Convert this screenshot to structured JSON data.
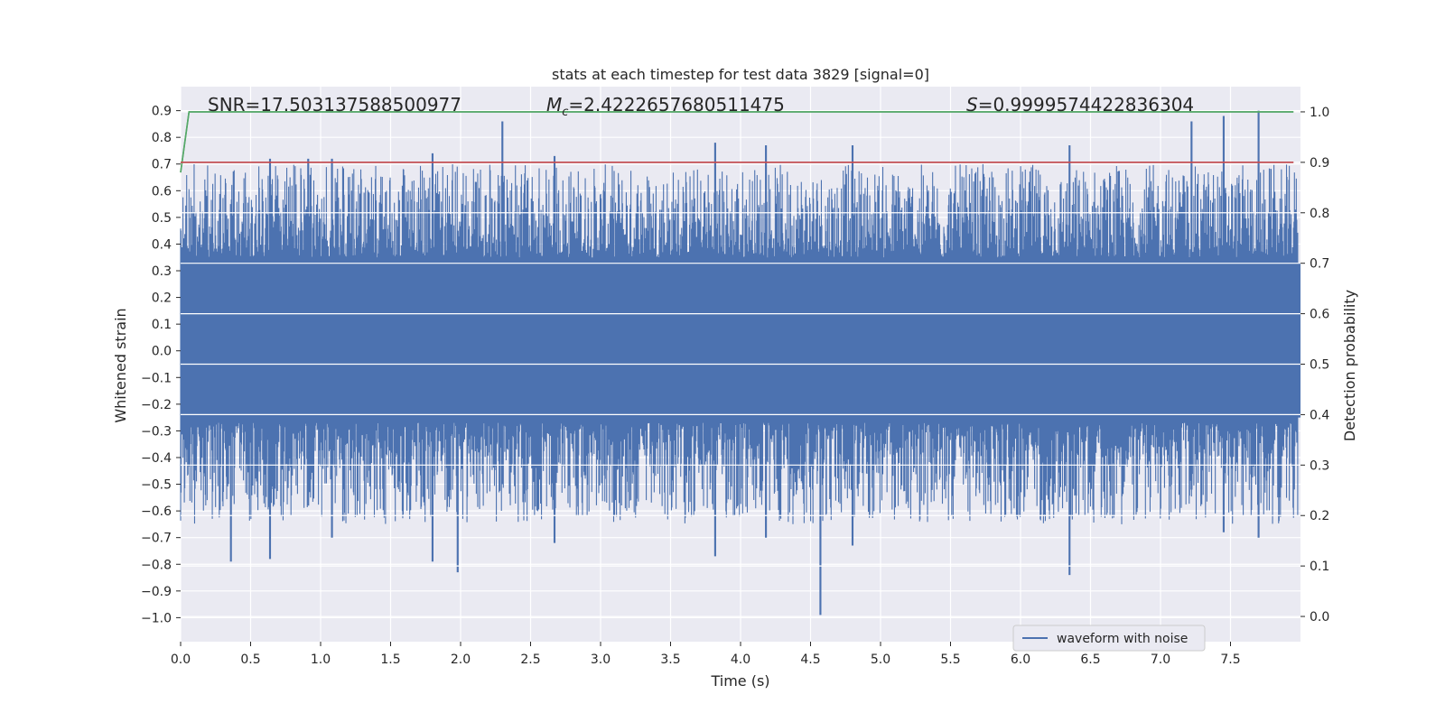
{
  "chart_data": {
    "type": "line",
    "title": "stats at each timestep for test data 3829 [signal=0]",
    "xlabel": "Time (s)",
    "ylabel": "Whitened strain",
    "y2label": "Detection probability",
    "xlim": [
      0.0,
      8.0
    ],
    "ylim": [
      -1.09,
      0.99
    ],
    "y2lim": [
      -0.05,
      1.05
    ],
    "grid": true,
    "x_ticks": [
      "0.0",
      "0.5",
      "1.0",
      "1.5",
      "2.0",
      "2.5",
      "3.0",
      "3.5",
      "4.0",
      "4.5",
      "5.0",
      "5.5",
      "6.0",
      "6.5",
      "7.0",
      "7.5"
    ],
    "y_ticks": [
      "0.9",
      "0.8",
      "0.7",
      "0.6",
      "0.5",
      "0.4",
      "0.3",
      "0.2",
      "0.1",
      "0.0",
      "−0.1",
      "−0.2",
      "−0.3",
      "−0.4",
      "−0.5",
      "−0.6",
      "−0.7",
      "−0.8",
      "−0.9",
      "−1.0"
    ],
    "y2_ticks": [
      "1.0",
      "0.9",
      "0.8",
      "0.7",
      "0.6",
      "0.5",
      "0.4",
      "0.3",
      "0.2",
      "0.1",
      "0.0"
    ],
    "annotations": [
      {
        "text": "SNR=17.503137588500977"
      },
      {
        "symbol": "M",
        "subscript": "c",
        "text": "=2.4222657680511475"
      },
      {
        "symbol": "S",
        "text": "=0.9999574422836304"
      }
    ],
    "series": [
      {
        "name": "waveform with noise",
        "axis": "left",
        "color": "#4c72b0",
        "note_peaks": [
          {
            "x": 0.36,
            "y_max": 0.55,
            "y_min": -0.79
          },
          {
            "x": 0.64,
            "y_max": 0.72,
            "y_min": -0.78
          },
          {
            "x": 0.91,
            "y_max": 0.72,
            "y_min": -0.58
          },
          {
            "x": 1.08,
            "y_max": 0.72,
            "y_min": -0.7
          },
          {
            "x": 1.8,
            "y_max": 0.74,
            "y_min": -0.79
          },
          {
            "x": 1.98,
            "y_max": 0.45,
            "y_min": -0.83
          },
          {
            "x": 2.3,
            "y_max": 0.86,
            "y_min": -0.5
          },
          {
            "x": 2.67,
            "y_max": 0.73,
            "y_min": -0.72
          },
          {
            "x": 3.82,
            "y_max": 0.78,
            "y_min": -0.77
          },
          {
            "x": 4.18,
            "y_max": 0.77,
            "y_min": -0.7
          },
          {
            "x": 4.57,
            "y_max": 0.4,
            "y_min": -0.99
          },
          {
            "x": 4.8,
            "y_max": 0.77,
            "y_min": -0.73
          },
          {
            "x": 6.35,
            "y_max": 0.77,
            "y_min": -0.84
          },
          {
            "x": 7.22,
            "y_max": 0.86,
            "y_min": -0.52
          },
          {
            "x": 7.45,
            "y_max": 0.88,
            "y_min": -0.68
          },
          {
            "x": 7.7,
            "y_max": 0.9,
            "y_min": -0.7
          }
        ],
        "core_band": [
          -0.25,
          0.33
        ]
      },
      {
        "axis": "right",
        "color": "#55a868",
        "x": [
          0.0,
          0.06,
          7.95
        ],
        "y": [
          0.88,
          1.0,
          1.0
        ]
      },
      {
        "axis": "right",
        "color": "#c44e52",
        "x": [
          0.0,
          7.95
        ],
        "y": [
          0.9,
          0.9
        ]
      }
    ],
    "legend": {
      "placement": "lower-right",
      "entries": [
        "waveform with noise"
      ]
    }
  }
}
